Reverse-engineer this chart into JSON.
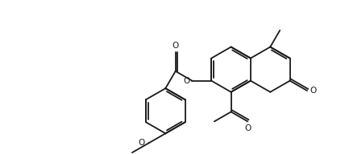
{
  "bg_color": "#ffffff",
  "line_color": "#1a1a1a",
  "lw": 1.3,
  "figsize": [
    4.28,
    1.92
  ],
  "dpi": 100,
  "xlim": [
    -0.5,
    8.5
  ],
  "ylim": [
    -0.3,
    3.8
  ]
}
